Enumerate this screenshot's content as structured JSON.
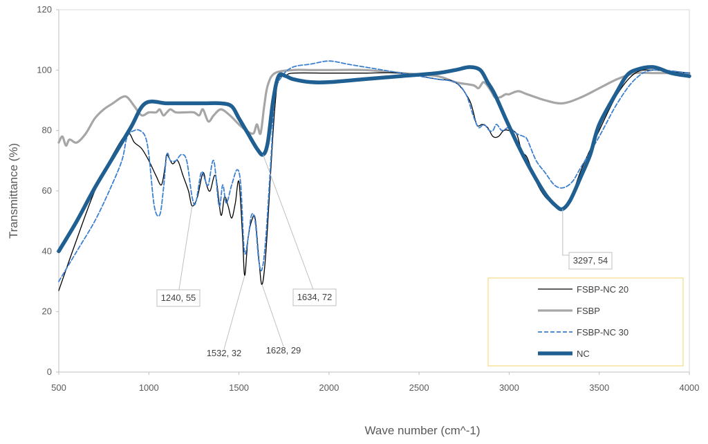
{
  "chart_data": {
    "type": "line",
    "title": "",
    "xlabel": "Wave number (cm^-1)",
    "ylabel": "Transmittance (%)",
    "xlim": [
      500,
      4000
    ],
    "ylim": [
      0,
      120
    ],
    "x_ticks": [
      "500",
      "1000",
      "1500",
      "2000",
      "2500",
      "3000",
      "3500",
      "4000"
    ],
    "y_ticks": [
      "0",
      "20",
      "40",
      "60",
      "80",
      "100",
      "120"
    ],
    "grid": false,
    "legend": {
      "placement": "bottom-right",
      "border_color": "#f2d36b",
      "items": [
        "FSBP-NC 20",
        "FSBP",
        "FSBP-NC 30",
        "NC"
      ]
    },
    "series": [
      {
        "name": "FSBP-NC 20",
        "color": "#000000",
        "style": "solid-thin",
        "points": [
          [
            500,
            27
          ],
          [
            600,
            44
          ],
          [
            700,
            60
          ],
          [
            800,
            72
          ],
          [
            880,
            79
          ],
          [
            920,
            76
          ],
          [
            960,
            74
          ],
          [
            1000,
            70
          ],
          [
            1040,
            65
          ],
          [
            1070,
            62
          ],
          [
            1090,
            68
          ],
          [
            1100,
            72
          ],
          [
            1130,
            69
          ],
          [
            1160,
            70
          ],
          [
            1190,
            65
          ],
          [
            1220,
            60
          ],
          [
            1240,
            55
          ],
          [
            1270,
            58
          ],
          [
            1300,
            66
          ],
          [
            1320,
            62
          ],
          [
            1340,
            60
          ],
          [
            1370,
            65
          ],
          [
            1400,
            52
          ],
          [
            1420,
            58
          ],
          [
            1440,
            55
          ],
          [
            1460,
            51
          ],
          [
            1480,
            56
          ],
          [
            1500,
            63
          ],
          [
            1520,
            45
          ],
          [
            1532,
            32
          ],
          [
            1550,
            44
          ],
          [
            1570,
            50
          ],
          [
            1590,
            51
          ],
          [
            1610,
            38
          ],
          [
            1628,
            29
          ],
          [
            1650,
            40
          ],
          [
            1680,
            70
          ],
          [
            1700,
            88
          ],
          [
            1720,
            97
          ],
          [
            1760,
            98
          ],
          [
            1800,
            99
          ],
          [
            2000,
            99
          ],
          [
            2200,
            99
          ],
          [
            2400,
            99
          ],
          [
            2600,
            97
          ],
          [
            2700,
            96
          ],
          [
            2780,
            90
          ],
          [
            2820,
            82
          ],
          [
            2850,
            82
          ],
          [
            2880,
            81
          ],
          [
            2910,
            78
          ],
          [
            2940,
            78
          ],
          [
            2970,
            80
          ],
          [
            3000,
            80
          ],
          [
            3040,
            79
          ],
          [
            3070,
            73
          ],
          [
            3100,
            71
          ],
          [
            3150,
            63
          ],
          [
            3200,
            58
          ],
          [
            3260,
            55
          ],
          [
            3297,
            54
          ],
          [
            3340,
            57
          ],
          [
            3400,
            67
          ],
          [
            3500,
            80
          ],
          [
            3600,
            92
          ],
          [
            3700,
            99
          ],
          [
            3800,
            100
          ],
          [
            4000,
            99
          ]
        ]
      },
      {
        "name": "FSBP",
        "color": "#a6a6a6",
        "style": "solid-medium",
        "points": [
          [
            500,
            76
          ],
          [
            520,
            78
          ],
          [
            540,
            75
          ],
          [
            560,
            77
          ],
          [
            600,
            76
          ],
          [
            650,
            79
          ],
          [
            700,
            84
          ],
          [
            750,
            87
          ],
          [
            800,
            89
          ],
          [
            850,
            91
          ],
          [
            880,
            91
          ],
          [
            920,
            88
          ],
          [
            960,
            85
          ],
          [
            1000,
            86
          ],
          [
            1040,
            86
          ],
          [
            1060,
            87
          ],
          [
            1080,
            85
          ],
          [
            1100,
            86
          ],
          [
            1120,
            87
          ],
          [
            1150,
            86
          ],
          [
            1200,
            86
          ],
          [
            1250,
            86
          ],
          [
            1280,
            85
          ],
          [
            1300,
            87
          ],
          [
            1330,
            83
          ],
          [
            1360,
            85
          ],
          [
            1400,
            87
          ],
          [
            1450,
            85
          ],
          [
            1500,
            82
          ],
          [
            1540,
            80
          ],
          [
            1580,
            79
          ],
          [
            1600,
            82
          ],
          [
            1620,
            79
          ],
          [
            1640,
            88
          ],
          [
            1660,
            95
          ],
          [
            1700,
            99
          ],
          [
            1800,
            100
          ],
          [
            1900,
            100
          ],
          [
            2000,
            100
          ],
          [
            2200,
            100
          ],
          [
            2400,
            99
          ],
          [
            2600,
            98
          ],
          [
            2700,
            96
          ],
          [
            2800,
            95
          ],
          [
            2830,
            94
          ],
          [
            2860,
            96
          ],
          [
            2900,
            93
          ],
          [
            2920,
            91
          ],
          [
            2950,
            91
          ],
          [
            2980,
            92
          ],
          [
            3000,
            92
          ],
          [
            3050,
            93
          ],
          [
            3100,
            92
          ],
          [
            3200,
            90
          ],
          [
            3297,
            89
          ],
          [
            3400,
            91
          ],
          [
            3500,
            94
          ],
          [
            3600,
            97
          ],
          [
            3700,
            99
          ],
          [
            3800,
            99
          ],
          [
            4000,
            99
          ]
        ]
      },
      {
        "name": "FSBP-NC 30",
        "color": "#3b7fd1",
        "style": "dashed",
        "points": [
          [
            500,
            30
          ],
          [
            600,
            40
          ],
          [
            700,
            50
          ],
          [
            780,
            60
          ],
          [
            850,
            70
          ],
          [
            880,
            78
          ],
          [
            920,
            80
          ],
          [
            950,
            80
          ],
          [
            980,
            78
          ],
          [
            1000,
            72
          ],
          [
            1030,
            55
          ],
          [
            1060,
            52
          ],
          [
            1080,
            60
          ],
          [
            1100,
            72
          ],
          [
            1120,
            70
          ],
          [
            1150,
            70
          ],
          [
            1180,
            72
          ],
          [
            1210,
            70
          ],
          [
            1240,
            58
          ],
          [
            1260,
            56
          ],
          [
            1290,
            66
          ],
          [
            1310,
            64
          ],
          [
            1330,
            62
          ],
          [
            1360,
            70
          ],
          [
            1390,
            55
          ],
          [
            1410,
            62
          ],
          [
            1430,
            56
          ],
          [
            1460,
            62
          ],
          [
            1490,
            67
          ],
          [
            1510,
            62
          ],
          [
            1530,
            40
          ],
          [
            1550,
            44
          ],
          [
            1570,
            52
          ],
          [
            1590,
            50
          ],
          [
            1610,
            37
          ],
          [
            1628,
            34
          ],
          [
            1650,
            45
          ],
          [
            1680,
            73
          ],
          [
            1700,
            92
          ],
          [
            1740,
            98
          ],
          [
            1800,
            101
          ],
          [
            1900,
            102
          ],
          [
            2000,
            103
          ],
          [
            2100,
            102
          ],
          [
            2200,
            101
          ],
          [
            2400,
            99
          ],
          [
            2600,
            97
          ],
          [
            2700,
            96
          ],
          [
            2760,
            92
          ],
          [
            2800,
            85
          ],
          [
            2830,
            81
          ],
          [
            2860,
            82
          ],
          [
            2890,
            80
          ],
          [
            2910,
            80
          ],
          [
            2930,
            82
          ],
          [
            2960,
            80
          ],
          [
            3000,
            81
          ],
          [
            3040,
            79
          ],
          [
            3080,
            78
          ],
          [
            3100,
            77
          ],
          [
            3150,
            70
          ],
          [
            3200,
            66
          ],
          [
            3250,
            62
          ],
          [
            3297,
            61
          ],
          [
            3350,
            63
          ],
          [
            3400,
            68
          ],
          [
            3500,
            78
          ],
          [
            3600,
            89
          ],
          [
            3700,
            97
          ],
          [
            3800,
            100
          ],
          [
            4000,
            99
          ]
        ]
      },
      {
        "name": "NC",
        "color": "#1f5f91",
        "style": "solid-thick",
        "points": [
          [
            500,
            40
          ],
          [
            600,
            50
          ],
          [
            700,
            61
          ],
          [
            800,
            71
          ],
          [
            900,
            81
          ],
          [
            980,
            89
          ],
          [
            1100,
            89
          ],
          [
            1200,
            89
          ],
          [
            1300,
            89
          ],
          [
            1400,
            89
          ],
          [
            1460,
            88
          ],
          [
            1500,
            84
          ],
          [
            1550,
            79
          ],
          [
            1600,
            74
          ],
          [
            1634,
            72
          ],
          [
            1660,
            76
          ],
          [
            1690,
            90
          ],
          [
            1720,
            98
          ],
          [
            1760,
            98
          ],
          [
            1800,
            97
          ],
          [
            1900,
            96
          ],
          [
            2000,
            96
          ],
          [
            2200,
            97
          ],
          [
            2400,
            98
          ],
          [
            2600,
            99
          ],
          [
            2700,
            100
          ],
          [
            2780,
            101
          ],
          [
            2840,
            100
          ],
          [
            2880,
            96
          ],
          [
            2920,
            92
          ],
          [
            2980,
            84
          ],
          [
            3050,
            75
          ],
          [
            3120,
            67
          ],
          [
            3200,
            59
          ],
          [
            3260,
            55
          ],
          [
            3297,
            54
          ],
          [
            3340,
            57
          ],
          [
            3400,
            65
          ],
          [
            3450,
            72
          ],
          [
            3500,
            82
          ],
          [
            3600,
            93
          ],
          [
            3650,
            98
          ],
          [
            3700,
            100
          ],
          [
            3800,
            101
          ],
          [
            3900,
            99
          ],
          [
            4000,
            98
          ]
        ]
      }
    ],
    "annotations": [
      {
        "text": "1240, 55",
        "x": 1240,
        "y": 55,
        "box": true
      },
      {
        "text": "1532, 32",
        "x": 1532,
        "y": 32,
        "box": false
      },
      {
        "text": "1628, 29",
        "x": 1628,
        "y": 29,
        "box": false
      },
      {
        "text": "1634, 72",
        "x": 1634,
        "y": 72,
        "box": true
      },
      {
        "text": "3297, 54",
        "x": 3297,
        "y": 54,
        "box": true
      }
    ]
  }
}
